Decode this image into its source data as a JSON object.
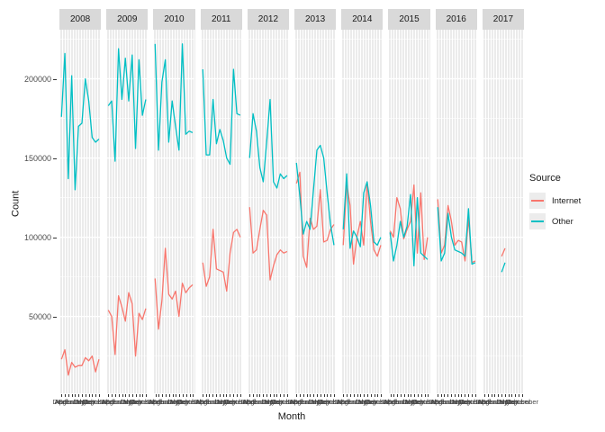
{
  "figure": {
    "background": "#FFFFFF",
    "panel_background": "#EBEBEB",
    "gridline_color": "#FFFFFF",
    "strip_background": "#D9D9D9",
    "axis_text_color": "#4D4D4D",
    "legend_key_fill": "#ECECEC"
  },
  "chart_data": {
    "type": "line",
    "title": "",
    "xlabel": "Month",
    "ylabel": "Count",
    "facets": [
      "2008",
      "2009",
      "2010",
      "2011",
      "2012",
      "2013",
      "2014",
      "2015",
      "2016",
      "2017"
    ],
    "x_categories": [
      "April",
      "August",
      "December",
      "February",
      "January",
      "July",
      "June",
      "March",
      "May",
      "November",
      "October",
      "September"
    ],
    "y_ticks": [
      50000,
      100000,
      150000,
      200000
    ],
    "y_minor_ticks": [
      25000,
      75000,
      125000,
      175000,
      225000
    ],
    "ylim": [
      1500,
      231000
    ],
    "grid": true,
    "legend": {
      "title": "Source",
      "position": "right",
      "entries": [
        {
          "label": "Internet",
          "color": "#F8766D"
        },
        {
          "label": "Other",
          "color": "#00BFC4"
        }
      ]
    },
    "series": [
      {
        "name": "Internet",
        "color": "#F8766D",
        "values_by_facet": {
          "2008": [
            23000,
            29000,
            13000,
            21000,
            18000,
            19000,
            19000,
            24000,
            22000,
            25000,
            15000,
            23000
          ],
          "2009": [
            54000,
            50000,
            26000,
            63000,
            56000,
            47000,
            65000,
            58000,
            25000,
            52000,
            48000,
            55000
          ],
          "2010": [
            74000,
            42000,
            60000,
            93000,
            64000,
            61000,
            66000,
            50000,
            71000,
            65000,
            68000,
            70000
          ],
          "2011": [
            84000,
            69000,
            75000,
            105000,
            80000,
            79000,
            78000,
            66000,
            90000,
            103000,
            105000,
            100000
          ],
          "2012": [
            119000,
            90000,
            92000,
            105000,
            117000,
            114000,
            73000,
            82000,
            89000,
            92000,
            90000,
            91000
          ],
          "2013": [
            134000,
            141000,
            88000,
            81000,
            112000,
            105000,
            107000,
            130000,
            97000,
            98000,
            105000,
            108000
          ],
          "2014": [
            95000,
            134000,
            120000,
            83000,
            100000,
            110000,
            95000,
            135000,
            110000,
            92000,
            88000,
            95000
          ],
          "2015": [
            104000,
            100000,
            125000,
            118000,
            99000,
            105000,
            110000,
            133000,
            90000,
            128000,
            86000,
            100000
          ],
          "2016": [
            124000,
            90000,
            95000,
            120000,
            110000,
            95000,
            98000,
            97000,
            85000,
            112000,
            84000,
            85000
          ],
          "2017": [
            null,
            null,
            null,
            null,
            null,
            88000,
            93000,
            null,
            null,
            null,
            null,
            null
          ]
        }
      },
      {
        "name": "Other",
        "color": "#00BFC4",
        "values_by_facet": {
          "2008": [
            176000,
            216000,
            137000,
            202000,
            130000,
            170000,
            172000,
            200000,
            186000,
            163000,
            160000,
            162000
          ],
          "2009": [
            183000,
            186000,
            148000,
            219000,
            187000,
            213000,
            186000,
            215000,
            156000,
            212000,
            177000,
            187000
          ],
          "2010": [
            222000,
            155000,
            198000,
            212000,
            160000,
            186000,
            170000,
            155000,
            222000,
            165000,
            167000,
            166000
          ],
          "2011": [
            206000,
            152000,
            152000,
            187000,
            159000,
            168000,
            161000,
            150000,
            146000,
            206000,
            178000,
            177000
          ],
          "2012": [
            150000,
            178000,
            167000,
            144000,
            135000,
            160000,
            187000,
            135000,
            131000,
            140000,
            137000,
            139000
          ],
          "2013": [
            147000,
            126000,
            102000,
            110000,
            105000,
            130000,
            155000,
            158000,
            150000,
            128000,
            108000,
            95000
          ],
          "2014": [
            105000,
            140000,
            93000,
            104000,
            100000,
            94000,
            128000,
            135000,
            120000,
            97000,
            95000,
            100000
          ],
          "2015": [
            103000,
            85000,
            95000,
            110000,
            100000,
            107000,
            127000,
            82000,
            125000,
            90000,
            88000,
            86000
          ],
          "2016": [
            119000,
            85000,
            90000,
            115000,
            100000,
            92000,
            91000,
            90000,
            88000,
            118000,
            83000,
            84000
          ],
          "2017": [
            null,
            null,
            null,
            null,
            null,
            78000,
            84000,
            null,
            null,
            null,
            null,
            null
          ]
        }
      }
    ]
  }
}
